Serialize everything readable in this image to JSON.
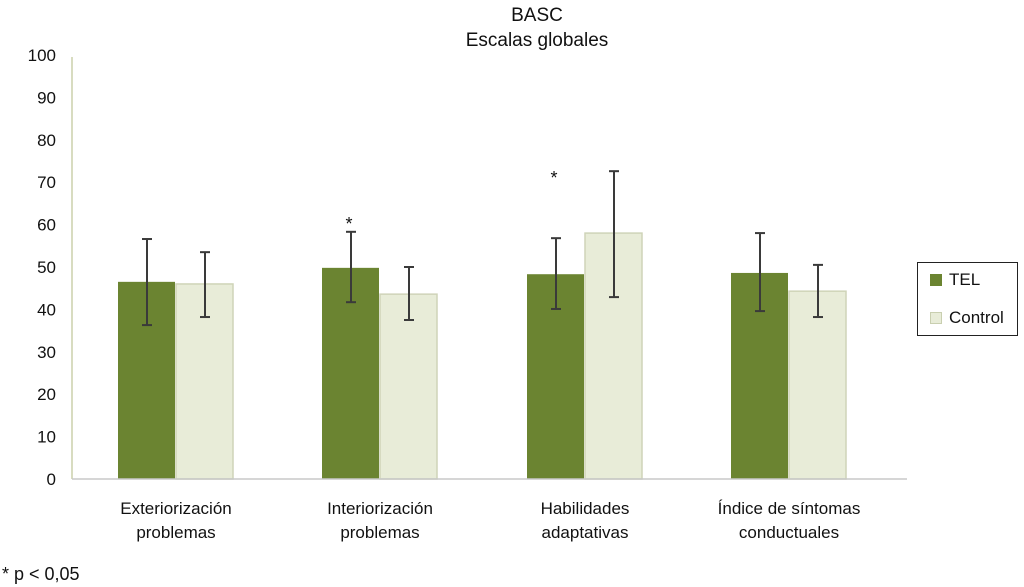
{
  "chart_data": {
    "type": "bar",
    "title": "BASC",
    "subtitle": "Escalas globales",
    "xlabel": "",
    "ylabel": "",
    "ylim": [
      0,
      100
    ],
    "yticks": [
      "0",
      "10",
      "20",
      "30",
      "40",
      "50",
      "60",
      "70",
      "80",
      "90",
      "100"
    ],
    "categories": [
      [
        "Exteriorización",
        "problemas"
      ],
      [
        "Interiorización",
        "problemas"
      ],
      [
        "Habilidades",
        "adaptativas"
      ],
      [
        "Índice de síntomas",
        "conductuales"
      ]
    ],
    "series": [
      {
        "name": "TEL",
        "color": "#6b8431",
        "values": [
          46.5,
          49.8,
          48.3,
          48.6
        ],
        "err_low": [
          36.3,
          41.7,
          40.1,
          39.6
        ],
        "err_high": [
          56.6,
          58.3,
          56.8,
          58.0
        ]
      },
      {
        "name": "Control",
        "color": "#e8ecd8",
        "values": [
          46.0,
          43.6,
          58.0,
          44.3
        ],
        "err_low": [
          38.2,
          37.5,
          42.9,
          38.2
        ],
        "err_high": [
          53.5,
          50.0,
          72.6,
          50.5
        ]
      }
    ],
    "significance_marks": [
      {
        "category_index": 1,
        "series_index": 0,
        "label": "*"
      },
      {
        "category_index": 2,
        "series_index": 0,
        "label": "*"
      }
    ],
    "legend_placement": "right",
    "grid": false,
    "footnote": "* p < 0,05"
  }
}
